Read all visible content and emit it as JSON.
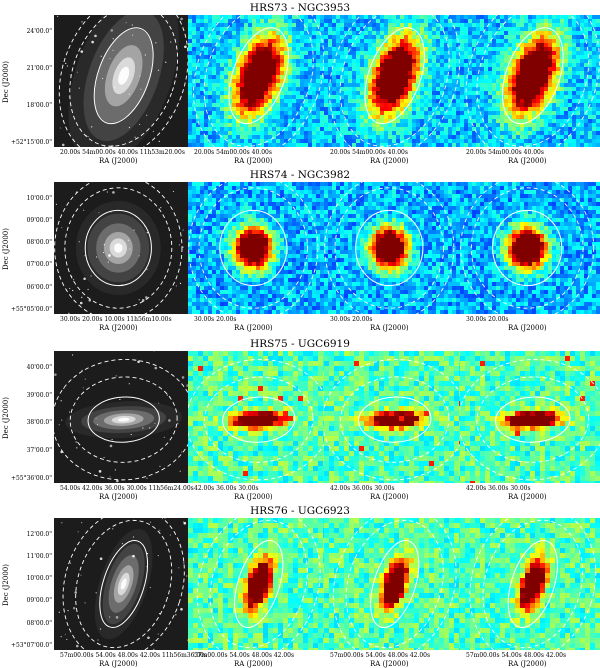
{
  "figure": {
    "rows": [
      {
        "title": "HRS73 - NGC3953",
        "ytitle": "Dec (J2000)",
        "yticks": [
          "24'00.0\"",
          "21'00.0\"",
          "18'00.0\"",
          "+52°15'00.0\""
        ],
        "xticks": [
          "20.00s   54m00.00s   40.00s 11h53m20.00s",
          "20.00s   54m00.00s   40.00s",
          "20.00s   54m00.00s   40.00s",
          "20.00s   54m00.00s   40.00s"
        ],
        "xtitle": "RA (J2000)",
        "galaxy": "spiral-inclined"
      },
      {
        "title": "HRS74 - NGC3982",
        "ytitle": "Dec (J2000)",
        "yticks": [
          "10'00.0\"",
          "09'00.0\"",
          "08'00.0\"",
          "07'00.0\"",
          "06'00.0\"",
          "+55°05'00.0\""
        ],
        "xticks": [
          "30.00s   20.00s   10.00s 11h56m10.00s",
          "30.00s   20.00s",
          "30.00s   20.00s",
          "30.00s   20.00s"
        ],
        "xtitle": "RA (J2000)",
        "galaxy": "compact-round"
      },
      {
        "title": "HRS75 - UGC6919",
        "ytitle": "Dec (J2000)",
        "yticks": [
          "40'00.0\"",
          "39'00.0\"",
          "38'00.0\"",
          "37'00.0\"",
          "+55°36'00.0\""
        ],
        "xticks": [
          "54.00s   42.00s   36.00s   30.00s 11h56m24.00s",
          "42.00s   36.00s   30.00s",
          "42.00s   36.00s   30.00s",
          "42.00s   36.00s   30.00s"
        ],
        "xtitle": "RA (J2000)",
        "galaxy": "edge-on"
      },
      {
        "title": "HRS76 - UGC6923",
        "ytitle": "Dec (J2000)",
        "yticks": [
          "12'00.0\"",
          "11'00.0\"",
          "10'00.0\"",
          "09'00.0\"",
          "08'00.0\"",
          "+53°07'00.0\""
        ],
        "xticks": [
          "57m00.00s 54.00s   48.00s   42.00s 11h56m36.00s",
          "57m00.00s 54.00s   48.00s   42.00s",
          "57m00.00s 54.00s   48.00s   42.00s",
          "57m00.00s 54.00s   48.00s   42.00s"
        ],
        "xtitle": "RA (J2000)",
        "galaxy": "inclined-small"
      }
    ]
  }
}
